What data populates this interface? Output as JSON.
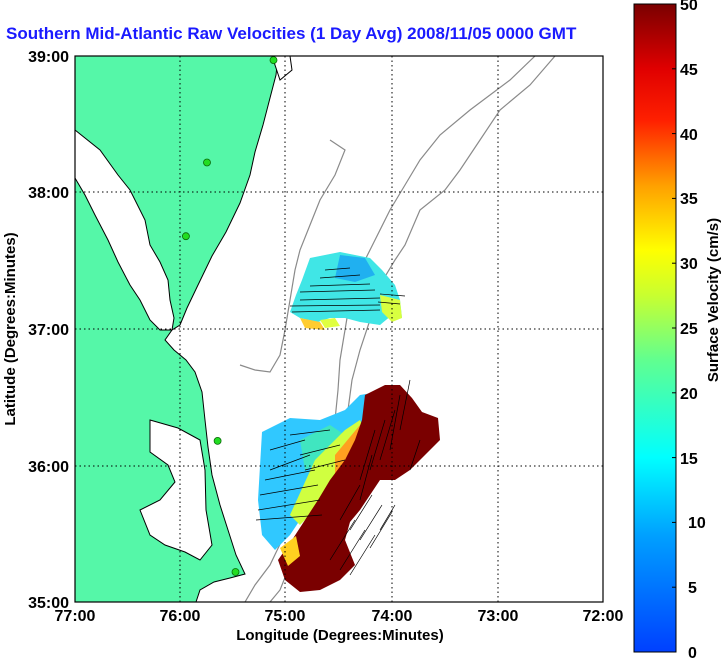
{
  "title": "Southern Mid-Atlantic Raw Velocities (1 Day Avg) 2008/11/05 0000 GMT",
  "map": {
    "xlabel": "Longitude (Degrees:Minutes)",
    "ylabel": "Latitude (Degrees:Minutes)",
    "lon_ticks": [
      "77:00",
      "76:00",
      "75:00",
      "74:00",
      "73:00",
      "72:00"
    ],
    "lat_ticks": [
      "39:00",
      "38:00",
      "37:00",
      "36:00",
      "35:00"
    ],
    "land_color": "#55f7a8",
    "coast_color": "#000000",
    "bathymetry_color": "#8a8a8a",
    "grid": "dotted",
    "station_color": "#22dd22"
  },
  "colorbar": {
    "label": "Surface Velocity (cm/s)",
    "ticks": [
      "50",
      "45",
      "40",
      "35",
      "30",
      "25",
      "20",
      "15",
      "10",
      "5",
      "0"
    ],
    "min": 0,
    "max": 50,
    "colormap": "jet"
  },
  "stations": [
    {
      "lon": -75.12,
      "lat": 38.97
    },
    {
      "lon": -75.75,
      "lat": 38.22
    },
    {
      "lon": -75.95,
      "lat": 37.68
    },
    {
      "lon": -75.65,
      "lat": 36.18
    },
    {
      "lon": -75.48,
      "lat": 35.22
    }
  ]
}
